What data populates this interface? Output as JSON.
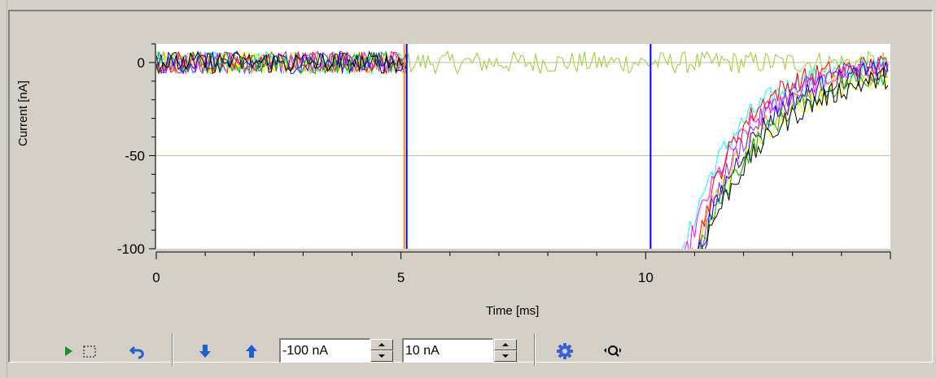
{
  "chart": {
    "xlabel": "Time [ms]",
    "ylabel": "Current [nA]",
    "x_ticks": [
      "0",
      "5",
      "10"
    ],
    "y_ticks": [
      "0",
      "-50",
      "-100"
    ]
  },
  "toolbar": {
    "play_icon": "play-icon",
    "select_icon": "selection-rect-icon",
    "undo_icon": "undo-icon",
    "down_icon": "arrow-down-icon",
    "up_icon": "arrow-up-icon",
    "min_value": "-100 nA",
    "max_value": "10 nA",
    "settings_icon": "gear-icon",
    "zoom_icon": "zoom-fit-icon"
  },
  "colors": {
    "trace_colors": [
      "#0000ff",
      "#ff0000",
      "#00b000",
      "#000000",
      "#ff00ff",
      "#00ffff",
      "#ffa500",
      "#ffff00",
      "#8a2be2",
      "#9acd32"
    ],
    "cursor_orange": "#ff8c00",
    "cursor_blue": "#0000ff",
    "accent_blue": "#1e5fd1"
  },
  "chart_data": {
    "type": "line",
    "xlabel": "Time [ms]",
    "ylabel": "Current [nA]",
    "xlim": [
      0,
      15
    ],
    "ylim": [
      -100,
      10
    ],
    "x_ticks": [
      0,
      5,
      10
    ],
    "y_ticks": [
      0,
      -50,
      -100
    ],
    "grid": true,
    "cursors": [
      5.1,
      10.1
    ],
    "description_series": [
      {
        "color": "#9acd32",
        "baseline": 0,
        "continuous": true
      },
      {
        "color": "#00ffff",
        "recovery_start": 10.7,
        "trough": -100
      },
      {
        "color": "#ff00ff",
        "recovery_start": 10.75,
        "trough": -100
      },
      {
        "color": "#ffa500",
        "recovery_start": 10.85,
        "trough": -100
      },
      {
        "color": "#ffff00",
        "recovery_start": 10.9,
        "trough": -100
      },
      {
        "color": "#ff0000",
        "recovery_start": 10.95,
        "trough": -100
      },
      {
        "color": "#8a2be2",
        "recovery_start": 11.0,
        "trough": -100
      },
      {
        "color": "#0000ff",
        "recovery_start": 11.0,
        "trough": -100
      },
      {
        "color": "#00b000",
        "recovery_start": 11.0,
        "trough": -100
      },
      {
        "color": "#000000",
        "recovery_start": 11.0,
        "trough": -100
      }
    ]
  }
}
